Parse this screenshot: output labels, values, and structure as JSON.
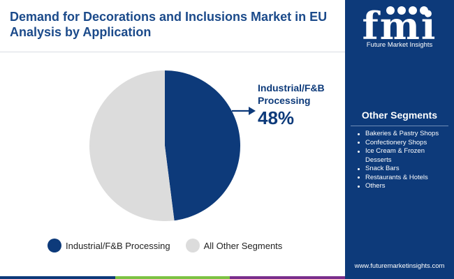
{
  "header": {
    "title_line1": "Demand for Decorations and Inclusions Market in EU",
    "title_line2": "Analysis by Application"
  },
  "brand": {
    "logo_letters": "fmi",
    "name": "Future Market Insights",
    "website": "www.futuremarketinsights.com"
  },
  "sidebar": {
    "title": "Other Segments",
    "items": [
      "Bakeries & Pastry Shops",
      "Confectionery Shops",
      "Ice Cream & Frozen Desserts",
      "Snack Bars",
      "Restaurants & Hotels",
      "Others"
    ]
  },
  "callout": {
    "label_line1": "Industrial/F&B",
    "label_line2": "Processing",
    "value": "48%"
  },
  "colors": {
    "primary": "#0d3a7a",
    "other": "#dcdcdc",
    "title": "#1b4a8a",
    "bar": [
      "#0d3a7a",
      "#7cc242",
      "#7a2e8c"
    ]
  },
  "chart_data": {
    "type": "pie",
    "title": "",
    "start_angle_deg": 0,
    "direction": "clockwise",
    "legend_position": "bottom",
    "slices": [
      {
        "label": "Industrial/F&B Processing",
        "value": 48,
        "color": "#0d3a7a"
      },
      {
        "label": "All Other Segments",
        "value": 52,
        "color": "#dcdcdc"
      }
    ]
  }
}
